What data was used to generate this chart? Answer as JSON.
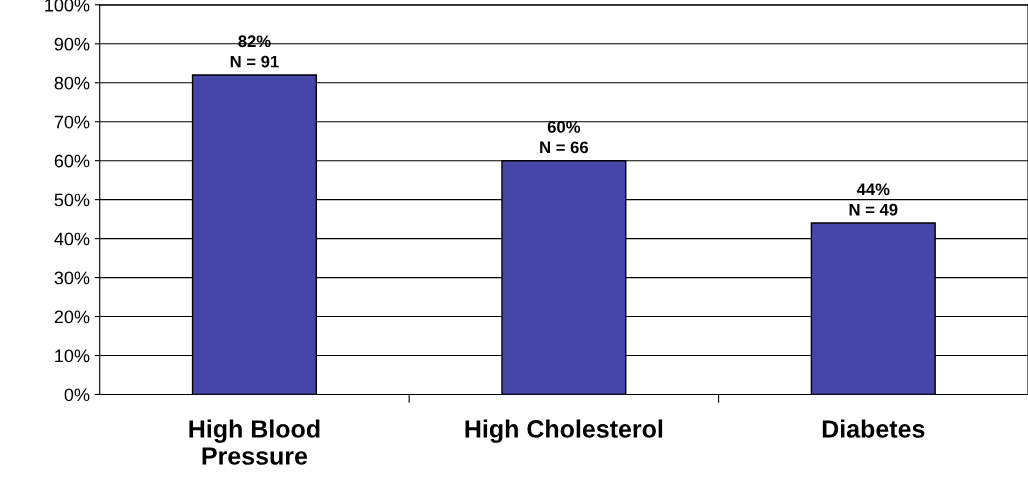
{
  "chart_data": {
    "type": "bar",
    "categories": [
      "High Blood\nPressure",
      "High Cholesterol",
      "Diabetes"
    ],
    "values": [
      82,
      60,
      44
    ],
    "value_labels": [
      "82%\nN = 91",
      "60%\nN = 66",
      "44%\nN = 49"
    ],
    "color": "#4646a8",
    "ylim": [
      0,
      100
    ],
    "yticks": [
      {
        "value": 0,
        "label": "0%"
      },
      {
        "value": 10,
        "label": "10%"
      },
      {
        "value": 20,
        "label": "20%"
      },
      {
        "value": 30,
        "label": "30%"
      },
      {
        "value": 40,
        "label": "40%"
      },
      {
        "value": 50,
        "label": "50%"
      },
      {
        "value": 60,
        "label": "60%"
      },
      {
        "value": 70,
        "label": "70%"
      },
      {
        "value": 80,
        "label": "80%"
      },
      {
        "value": 90,
        "label": "90%"
      },
      {
        "value": 100,
        "label": "100%"
      }
    ],
    "grid": "y"
  }
}
